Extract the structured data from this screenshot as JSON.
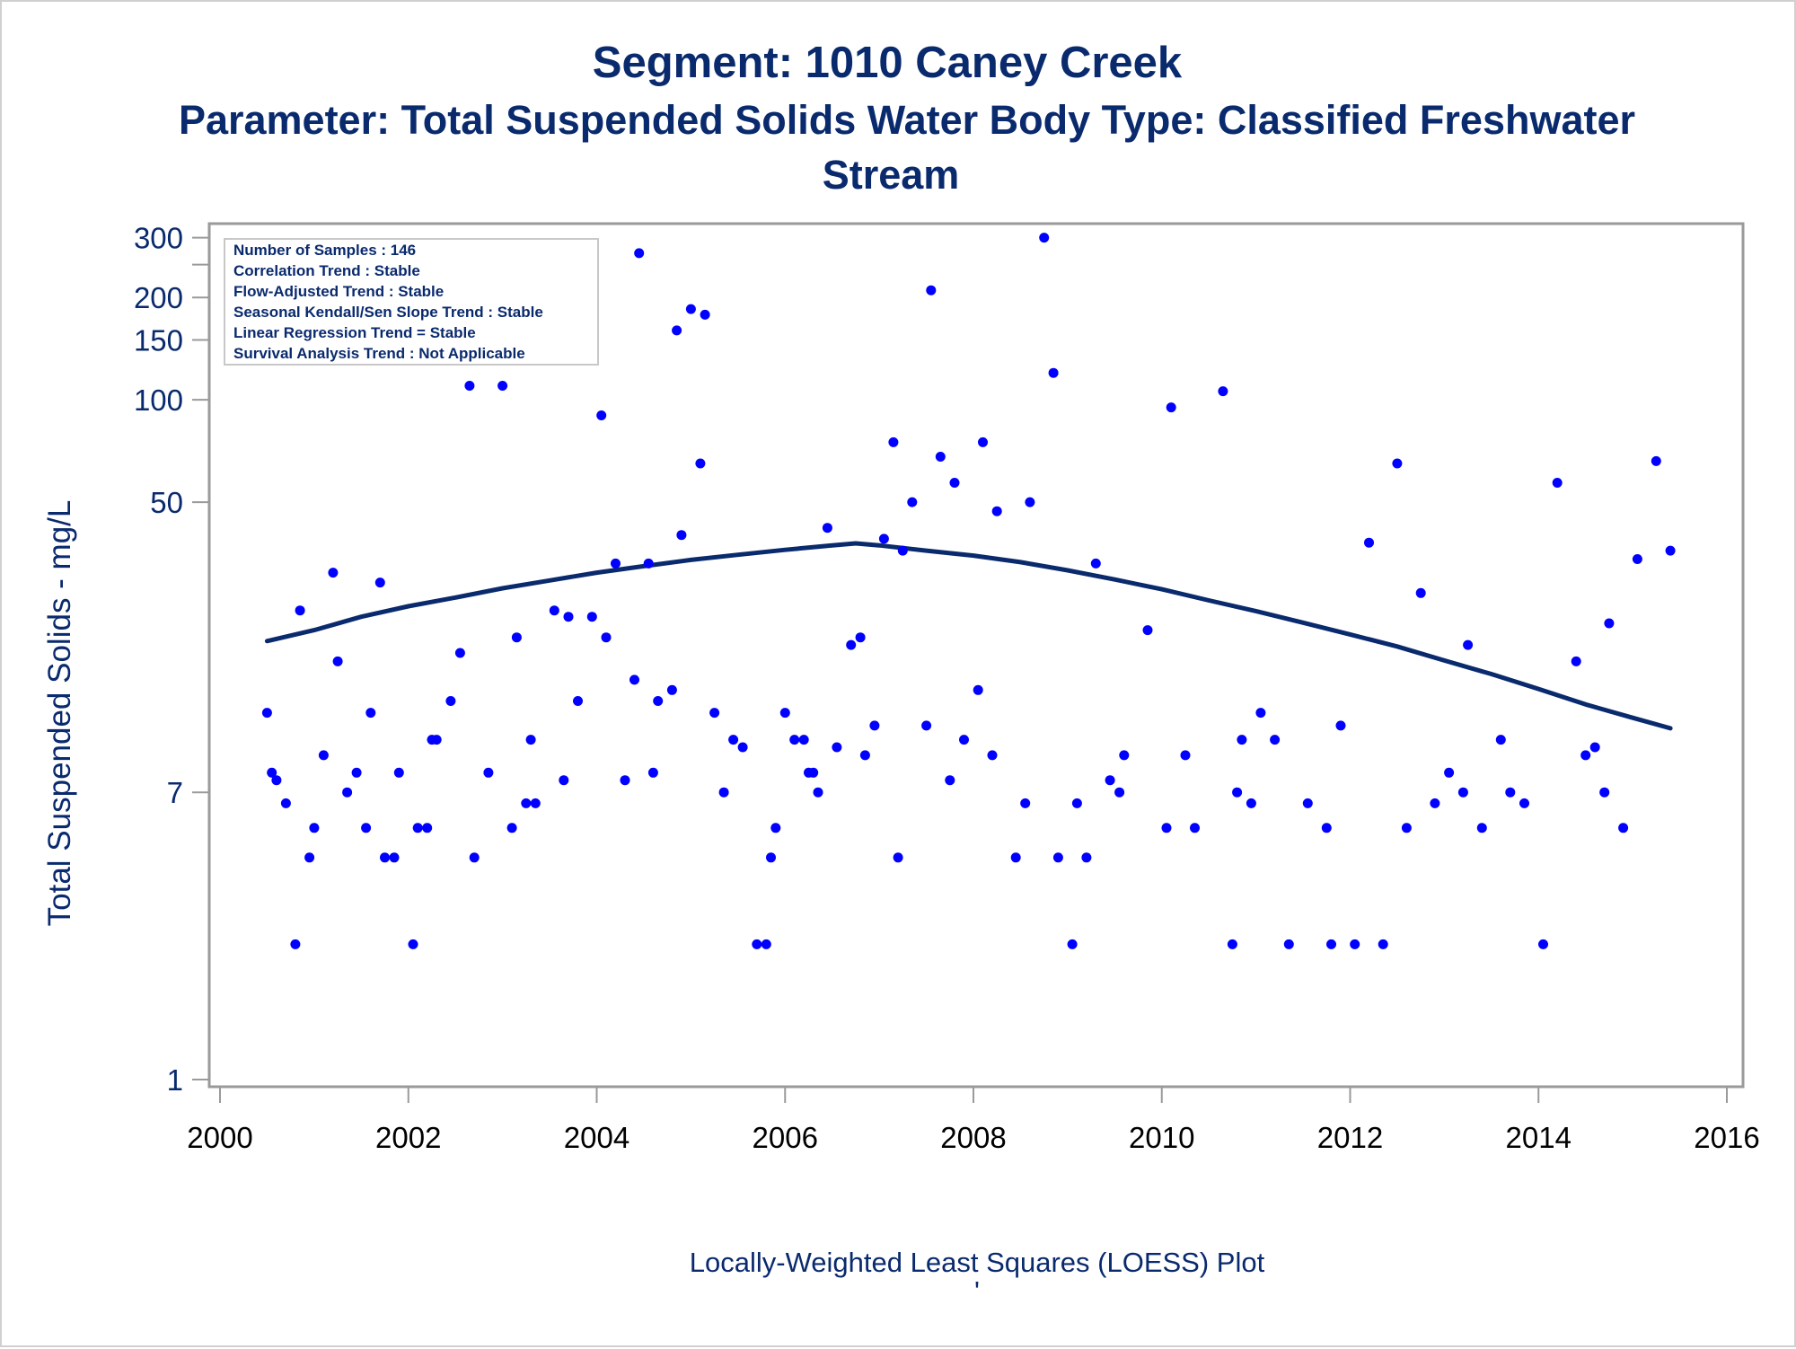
{
  "chart_data": {
    "type": "scatter",
    "title": "Segment: 1010  Caney Creek",
    "subtitle_lines": [
      "Parameter: Total Suspended Solids   Water Body Type: Classified Freshwater",
      "Stream"
    ],
    "ylabel": "Total Suspended Solids - mg/L",
    "xlabel": "",
    "footnote": "Locally-Weighted Least Squares (LOESS) Plot",
    "footnote_mark": "'",
    "y_scale": "log",
    "xlim": [
      2000,
      2016
    ],
    "ylim": [
      1,
      320
    ],
    "x_ticks": [
      2000,
      2002,
      2004,
      2006,
      2008,
      2010,
      2012,
      2014,
      2016
    ],
    "y_ticks": [
      1,
      7,
      50,
      100,
      150,
      200,
      300
    ],
    "y_minor_ticks": [
      250
    ],
    "grid": false,
    "colors": {
      "points": "#0000ff",
      "curve": "#0a2a6e",
      "text": "#0a2a6e",
      "axis": "#9a9a9a"
    },
    "info_box": {
      "position": "top-left",
      "lines": [
        "Number of Samples : 146",
        "Correlation Trend : Stable",
        "Flow-Adjusted Trend : Stable",
        "Seasonal Kendall/Sen Slope Trend : Stable",
        "Linear Regression Trend = Stable",
        "Survival Analysis Trend : Not Applicable"
      ]
    },
    "series": [
      {
        "type": "scatter",
        "points": [
          [
            2000.5,
            12
          ],
          [
            2000.55,
            8
          ],
          [
            2000.6,
            7.6
          ],
          [
            2000.7,
            6.5
          ],
          [
            2000.8,
            2.5
          ],
          [
            2000.85,
            24
          ],
          [
            2000.95,
            4.5
          ],
          [
            2001.0,
            5.5
          ],
          [
            2001.1,
            9
          ],
          [
            2001.2,
            31
          ],
          [
            2001.25,
            17
          ],
          [
            2001.35,
            7
          ],
          [
            2001.45,
            8
          ],
          [
            2001.55,
            5.5
          ],
          [
            2001.6,
            12
          ],
          [
            2001.7,
            29
          ],
          [
            2001.75,
            4.5
          ],
          [
            2001.85,
            4.5
          ],
          [
            2001.9,
            8
          ],
          [
            2002.05,
            2.5
          ],
          [
            2002.1,
            5.5
          ],
          [
            2002.2,
            5.5
          ],
          [
            2002.25,
            10
          ],
          [
            2002.3,
            10
          ],
          [
            2002.45,
            13
          ],
          [
            2002.55,
            18
          ],
          [
            2002.65,
            110
          ],
          [
            2002.7,
            4.5
          ],
          [
            2002.85,
            8
          ],
          [
            2003.0,
            110
          ],
          [
            2003.1,
            5.5
          ],
          [
            2003.15,
            20
          ],
          [
            2003.25,
            6.5
          ],
          [
            2003.3,
            10
          ],
          [
            2003.35,
            6.5
          ],
          [
            2003.55,
            24
          ],
          [
            2003.65,
            7.6
          ],
          [
            2003.7,
            23
          ],
          [
            2003.8,
            13
          ],
          [
            2003.85,
            175
          ],
          [
            2003.95,
            23
          ],
          [
            2004.05,
            90
          ],
          [
            2004.1,
            20
          ],
          [
            2004.2,
            33
          ],
          [
            2004.3,
            7.6
          ],
          [
            2004.4,
            15
          ],
          [
            2004.45,
            270
          ],
          [
            2004.55,
            33
          ],
          [
            2004.6,
            8
          ],
          [
            2004.65,
            13
          ],
          [
            2004.8,
            14
          ],
          [
            2004.85,
            160
          ],
          [
            2004.9,
            40
          ],
          [
            2005.0,
            185
          ],
          [
            2005.1,
            65
          ],
          [
            2005.15,
            178
          ],
          [
            2005.25,
            12
          ],
          [
            2005.35,
            7
          ],
          [
            2005.45,
            10
          ],
          [
            2005.55,
            9.5
          ],
          [
            2005.7,
            2.5
          ],
          [
            2005.8,
            2.5
          ],
          [
            2005.85,
            4.5
          ],
          [
            2005.9,
            5.5
          ],
          [
            2006.0,
            12
          ],
          [
            2006.1,
            10
          ],
          [
            2006.2,
            10
          ],
          [
            2006.25,
            8
          ],
          [
            2006.3,
            8
          ],
          [
            2006.35,
            7
          ],
          [
            2006.45,
            42
          ],
          [
            2006.55,
            9.5
          ],
          [
            2006.7,
            19
          ],
          [
            2006.8,
            20
          ],
          [
            2006.85,
            9
          ],
          [
            2006.95,
            11
          ],
          [
            2007.05,
            39
          ],
          [
            2007.15,
            75
          ],
          [
            2007.2,
            4.5
          ],
          [
            2007.25,
            36
          ],
          [
            2007.35,
            50
          ],
          [
            2007.5,
            11
          ],
          [
            2007.55,
            210
          ],
          [
            2007.65,
            68
          ],
          [
            2007.75,
            7.6
          ],
          [
            2007.8,
            57
          ],
          [
            2007.9,
            10
          ],
          [
            2008.05,
            14
          ],
          [
            2008.1,
            75
          ],
          [
            2008.2,
            9
          ],
          [
            2008.25,
            47
          ],
          [
            2008.45,
            4.5
          ],
          [
            2008.55,
            6.5
          ],
          [
            2008.6,
            50
          ],
          [
            2008.75,
            300
          ],
          [
            2008.85,
            120
          ],
          [
            2008.9,
            4.5
          ],
          [
            2009.05,
            2.5
          ],
          [
            2009.1,
            6.5
          ],
          [
            2009.2,
            4.5
          ],
          [
            2009.3,
            33
          ],
          [
            2009.45,
            7.6
          ],
          [
            2009.55,
            7
          ],
          [
            2009.6,
            9
          ],
          [
            2009.85,
            21
          ],
          [
            2010.05,
            5.5
          ],
          [
            2010.1,
            95
          ],
          [
            2010.25,
            9
          ],
          [
            2010.35,
            5.5
          ],
          [
            2010.65,
            106
          ],
          [
            2010.75,
            2.5
          ],
          [
            2010.8,
            7
          ],
          [
            2010.85,
            10
          ],
          [
            2010.95,
            6.5
          ],
          [
            2011.05,
            12
          ],
          [
            2011.2,
            10
          ],
          [
            2011.35,
            2.5
          ],
          [
            2011.55,
            6.5
          ],
          [
            2011.75,
            5.5
          ],
          [
            2011.8,
            2.5
          ],
          [
            2011.9,
            11
          ],
          [
            2012.05,
            2.5
          ],
          [
            2012.2,
            38
          ],
          [
            2012.35,
            2.5
          ],
          [
            2012.5,
            65
          ],
          [
            2012.6,
            5.5
          ],
          [
            2012.75,
            27
          ],
          [
            2012.9,
            6.5
          ],
          [
            2013.05,
            8
          ],
          [
            2013.2,
            7
          ],
          [
            2013.25,
            19
          ],
          [
            2013.4,
            5.5
          ],
          [
            2013.6,
            10
          ],
          [
            2013.7,
            7
          ],
          [
            2013.85,
            6.5
          ],
          [
            2014.05,
            2.5
          ],
          [
            2014.2,
            57
          ],
          [
            2014.4,
            17
          ],
          [
            2014.5,
            9
          ],
          [
            2014.6,
            9.5
          ],
          [
            2014.7,
            7
          ],
          [
            2014.75,
            22
          ],
          [
            2014.9,
            5.5
          ],
          [
            2015.05,
            34
          ],
          [
            2015.25,
            66
          ],
          [
            2015.4,
            36
          ]
        ]
      },
      {
        "type": "line",
        "points": [
          [
            2000.5,
            19.5
          ],
          [
            2001.0,
            21
          ],
          [
            2001.5,
            23
          ],
          [
            2002.0,
            24.7
          ],
          [
            2002.5,
            26.2
          ],
          [
            2003.0,
            27.9
          ],
          [
            2003.5,
            29.4
          ],
          [
            2004.0,
            31
          ],
          [
            2004.5,
            32.4
          ],
          [
            2005.0,
            33.8
          ],
          [
            2005.5,
            35
          ],
          [
            2006.0,
            36.2
          ],
          [
            2006.5,
            37.3
          ],
          [
            2006.75,
            37.8
          ],
          [
            2007.0,
            37.3
          ],
          [
            2007.5,
            36
          ],
          [
            2008.0,
            34.8
          ],
          [
            2008.5,
            33.3
          ],
          [
            2009.0,
            31.5
          ],
          [
            2009.5,
            29.6
          ],
          [
            2010.0,
            27.7
          ],
          [
            2010.5,
            25.7
          ],
          [
            2011.0,
            23.9
          ],
          [
            2011.5,
            22.1
          ],
          [
            2012.0,
            20.4
          ],
          [
            2012.5,
            18.8
          ],
          [
            2013.0,
            17.1
          ],
          [
            2013.5,
            15.6
          ],
          [
            2014.0,
            14.1
          ],
          [
            2014.5,
            12.7
          ],
          [
            2015.0,
            11.6
          ],
          [
            2015.4,
            10.8
          ]
        ]
      }
    ]
  }
}
